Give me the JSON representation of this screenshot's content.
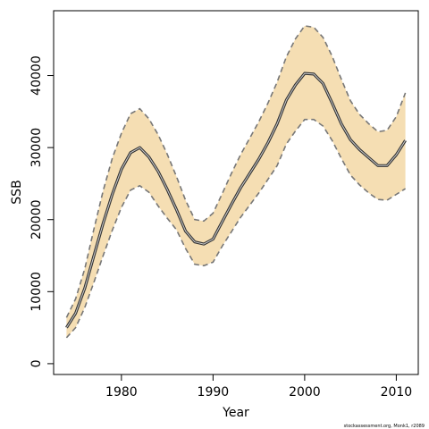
{
  "chart_data": {
    "type": "area",
    "title": "",
    "xlabel": "Year",
    "ylabel": "SSB",
    "xlim": [
      1972.6,
      2012.4
    ],
    "ylim": [
      -1500,
      49000
    ],
    "xticks": [
      1980,
      1990,
      2000,
      2010
    ],
    "yticks": [
      0,
      10000,
      20000,
      30000,
      40000
    ],
    "grid": false,
    "colors": {
      "band": "#f5deb3",
      "estimate": "#333333",
      "bounds": "#777777"
    },
    "x": [
      1974,
      1975,
      1976,
      1977,
      1978,
      1979,
      1980,
      1981,
      1982,
      1983,
      1984,
      1985,
      1986,
      1987,
      1988,
      1989,
      1990,
      1991,
      1992,
      1993,
      1994,
      1995,
      1996,
      1997,
      1998,
      1999,
      2000,
      2001,
      2002,
      2003,
      2004,
      2005,
      2006,
      2007,
      2008,
      2009,
      2010,
      2011
    ],
    "series": [
      {
        "role": "estimate",
        "values": [
          5000,
          7000,
          10500,
          15000,
          19500,
          23500,
          27000,
          29300,
          30000,
          28700,
          26700,
          24200,
          21400,
          18400,
          16900,
          16600,
          17300,
          19700,
          22100,
          24400,
          26400,
          28400,
          30700,
          33300,
          36600,
          38700,
          40300,
          40200,
          38900,
          36200,
          33300,
          31100,
          29700,
          28600,
          27500,
          27500,
          29000,
          31000
        ]
      },
      {
        "role": "upper",
        "values": [
          6400,
          9000,
          13200,
          18700,
          24000,
          28500,
          32000,
          34700,
          35400,
          34000,
          31800,
          29100,
          26000,
          22700,
          20000,
          19800,
          20900,
          23600,
          26400,
          29000,
          31300,
          33600,
          36200,
          39100,
          42600,
          45100,
          46900,
          46700,
          45300,
          42700,
          39500,
          36500,
          34600,
          33300,
          32200,
          32400,
          34300,
          37600
        ]
      },
      {
        "role": "lower",
        "values": [
          3600,
          5000,
          7800,
          11300,
          15000,
          18500,
          21700,
          24100,
          24700,
          23800,
          21900,
          20200,
          18600,
          16000,
          13800,
          13600,
          14100,
          16300,
          18300,
          20300,
          22000,
          23700,
          25600,
          27500,
          30500,
          32300,
          33900,
          33900,
          33000,
          31000,
          28500,
          26200,
          24800,
          23700,
          22800,
          22700,
          23500,
          24300
        ]
      }
    ],
    "credit": "stockassessment.org, Monk1, r2089"
  }
}
